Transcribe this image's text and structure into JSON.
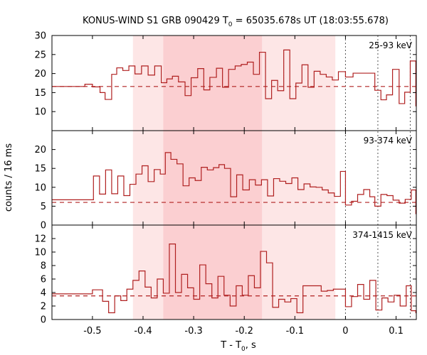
{
  "title": {
    "main": "KONUS-WIND S1 GRB 090429 T",
    "sub": "0",
    "rest": " = 65035.678s UT (18:03:55.678)"
  },
  "xlabel": {
    "main": "T - T",
    "sub": "0",
    "rest": ", s"
  },
  "ylabel": "counts / 16 ms",
  "colors": {
    "lightcurve": "#b02020",
    "band_outer": "#fde6e6",
    "band_inner": "#fbcfd1",
    "background": "#b02020",
    "marker": "#555555"
  },
  "chart_data": {
    "type": "line",
    "x": [
      -0.58,
      0.14
    ],
    "xlim": [
      -0.58,
      0.14
    ],
    "xticks": [
      -0.5,
      -0.4,
      -0.3,
      -0.2,
      -0.1,
      0,
      0.1
    ],
    "xtick_labels": [
      "-0.5",
      "-0.4",
      "-0.3",
      "-0.2",
      "-0.1",
      "0",
      "0.1"
    ],
    "grid": false,
    "bin_width": 0.016,
    "bands": [
      {
        "x0": -0.42,
        "x1": -0.02,
        "style": "outer"
      },
      {
        "x0": -0.36,
        "x1": -0.165,
        "style": "inner"
      }
    ],
    "vlines": [
      0,
      0.064,
      0.128
    ],
    "panels": [
      {
        "label": "25-93 keV",
        "ylim": [
          5,
          30
        ],
        "yticks": [
          10,
          15,
          20,
          25,
          30
        ],
        "background": 16.6,
        "start": -0.58,
        "steps": [
          [
            -0.58,
            16.6
          ],
          [
            -0.515,
            17.2
          ],
          [
            -0.5,
            16.5
          ],
          [
            -0.485,
            15.0
          ],
          [
            -0.475,
            13.2
          ],
          [
            -0.462,
            19.8
          ],
          [
            -0.452,
            21.5
          ],
          [
            -0.44,
            20.8
          ],
          [
            -0.428,
            22.0
          ],
          [
            -0.416,
            19.9
          ],
          [
            -0.403,
            22.0
          ],
          [
            -0.39,
            19.6
          ],
          [
            -0.377,
            22.0
          ],
          [
            -0.364,
            17.6
          ],
          [
            -0.353,
            18.6
          ],
          [
            -0.342,
            19.3
          ],
          [
            -0.33,
            17.8
          ],
          [
            -0.317,
            14.2
          ],
          [
            -0.305,
            18.9
          ],
          [
            -0.292,
            21.3
          ],
          [
            -0.28,
            15.7
          ],
          [
            -0.268,
            19.0
          ],
          [
            -0.255,
            21.4
          ],
          [
            -0.243,
            16.4
          ],
          [
            -0.231,
            21.1
          ],
          [
            -0.218,
            22.0
          ],
          [
            -0.206,
            22.4
          ],
          [
            -0.194,
            23.0
          ],
          [
            -0.182,
            19.8
          ],
          [
            -0.17,
            25.6
          ],
          [
            -0.158,
            13.4
          ],
          [
            -0.146,
            18.2
          ],
          [
            -0.134,
            15.5
          ],
          [
            -0.122,
            26.2
          ],
          [
            -0.11,
            13.4
          ],
          [
            -0.098,
            17.5
          ],
          [
            -0.086,
            22.3
          ],
          [
            -0.074,
            16.4
          ],
          [
            -0.062,
            20.6
          ],
          [
            -0.05,
            19.8
          ],
          [
            -0.038,
            19.1
          ],
          [
            -0.026,
            18.3
          ],
          [
            -0.014,
            20.5
          ],
          [
            0.0,
            19.1
          ],
          [
            0.015,
            20.1
          ],
          [
            0.045,
            20.1
          ],
          [
            0.058,
            15.6
          ],
          [
            0.07,
            13.1
          ],
          [
            0.081,
            14.4
          ],
          [
            0.093,
            21.1
          ],
          [
            0.106,
            12.1
          ],
          [
            0.117,
            15.1
          ],
          [
            0.128,
            23.3
          ],
          [
            0.139,
            11.5
          ]
        ]
      },
      {
        "label": "93-374 keV",
        "ylim": [
          0,
          25
        ],
        "yticks": [
          0,
          5,
          10,
          15,
          20
        ],
        "background": 6.0,
        "start": -0.58,
        "steps": [
          [
            -0.58,
            6.7
          ],
          [
            -0.498,
            13.0
          ],
          [
            -0.486,
            8.2
          ],
          [
            -0.474,
            14.6
          ],
          [
            -0.462,
            8.3
          ],
          [
            -0.45,
            13.0
          ],
          [
            -0.438,
            7.8
          ],
          [
            -0.426,
            10.8
          ],
          [
            -0.414,
            13.5
          ],
          [
            -0.402,
            15.7
          ],
          [
            -0.39,
            11.5
          ],
          [
            -0.378,
            14.7
          ],
          [
            -0.366,
            13.5
          ],
          [
            -0.356,
            19.2
          ],
          [
            -0.345,
            17.4
          ],
          [
            -0.333,
            16.2
          ],
          [
            -0.321,
            10.4
          ],
          [
            -0.309,
            12.5
          ],
          [
            -0.297,
            11.8
          ],
          [
            -0.285,
            15.3
          ],
          [
            -0.273,
            14.6
          ],
          [
            -0.261,
            15.2
          ],
          [
            -0.25,
            16.0
          ],
          [
            -0.239,
            15.0
          ],
          [
            -0.227,
            7.5
          ],
          [
            -0.215,
            13.3
          ],
          [
            -0.203,
            9.3
          ],
          [
            -0.19,
            12.0
          ],
          [
            -0.178,
            10.6
          ],
          [
            -0.166,
            12.0
          ],
          [
            -0.154,
            7.7
          ],
          [
            -0.142,
            12.3
          ],
          [
            -0.13,
            11.6
          ],
          [
            -0.118,
            11.0
          ],
          [
            -0.106,
            12.5
          ],
          [
            -0.094,
            9.4
          ],
          [
            -0.082,
            10.9
          ],
          [
            -0.07,
            10.1
          ],
          [
            -0.058,
            10.0
          ],
          [
            -0.046,
            9.3
          ],
          [
            -0.034,
            8.5
          ],
          [
            -0.022,
            7.6
          ],
          [
            -0.01,
            14.2
          ],
          [
            0.0,
            5.3
          ],
          [
            0.012,
            6.3
          ],
          [
            0.024,
            8.1
          ],
          [
            0.036,
            9.4
          ],
          [
            0.048,
            7.5
          ],
          [
            0.058,
            5.0
          ],
          [
            0.07,
            8.1
          ],
          [
            0.082,
            7.8
          ],
          [
            0.094,
            6.6
          ],
          [
            0.106,
            5.8
          ],
          [
            0.118,
            6.8
          ],
          [
            0.13,
            9.3
          ],
          [
            0.139,
            3.0
          ]
        ]
      },
      {
        "label": "374-1415 keV",
        "ylim": [
          0,
          14
        ],
        "yticks": [
          0,
          2,
          4,
          6,
          8,
          10,
          12
        ],
        "background": 3.5,
        "start": -0.58,
        "steps": [
          [
            -0.58,
            3.8
          ],
          [
            -0.5,
            4.4
          ],
          [
            -0.48,
            2.7
          ],
          [
            -0.468,
            1.0
          ],
          [
            -0.456,
            3.5
          ],
          [
            -0.444,
            2.8
          ],
          [
            -0.432,
            4.5
          ],
          [
            -0.42,
            5.8
          ],
          [
            -0.408,
            7.2
          ],
          [
            -0.396,
            4.8
          ],
          [
            -0.384,
            3.2
          ],
          [
            -0.372,
            6.0
          ],
          [
            -0.36,
            3.9
          ],
          [
            -0.348,
            11.2
          ],
          [
            -0.336,
            4.0
          ],
          [
            -0.324,
            6.7
          ],
          [
            -0.312,
            4.7
          ],
          [
            -0.3,
            3.0
          ],
          [
            -0.288,
            8.1
          ],
          [
            -0.276,
            5.3
          ],
          [
            -0.264,
            3.2
          ],
          [
            -0.252,
            6.4
          ],
          [
            -0.24,
            3.6
          ],
          [
            -0.228,
            2.0
          ],
          [
            -0.216,
            5.0
          ],
          [
            -0.204,
            3.6
          ],
          [
            -0.192,
            6.5
          ],
          [
            -0.18,
            4.7
          ],
          [
            -0.168,
            10.1
          ],
          [
            -0.156,
            8.4
          ],
          [
            -0.144,
            1.8
          ],
          [
            -0.132,
            3.0
          ],
          [
            -0.12,
            2.6
          ],
          [
            -0.108,
            3.1
          ],
          [
            -0.096,
            1.0
          ],
          [
            -0.084,
            5.0
          ],
          [
            -0.072,
            5.0
          ],
          [
            -0.06,
            5.0
          ],
          [
            -0.048,
            4.2
          ],
          [
            -0.036,
            4.3
          ],
          [
            -0.024,
            4.5
          ],
          [
            0.0,
            1.9
          ],
          [
            0.012,
            3.4
          ],
          [
            0.024,
            5.2
          ],
          [
            0.036,
            3.0
          ],
          [
            0.048,
            5.8
          ],
          [
            0.06,
            1.4
          ],
          [
            0.072,
            3.2
          ],
          [
            0.084,
            2.6
          ],
          [
            0.096,
            3.6
          ],
          [
            0.108,
            2.0
          ],
          [
            0.12,
            5.0
          ],
          [
            0.13,
            1.3
          ],
          [
            0.139,
            1.0
          ]
        ]
      }
    ]
  }
}
